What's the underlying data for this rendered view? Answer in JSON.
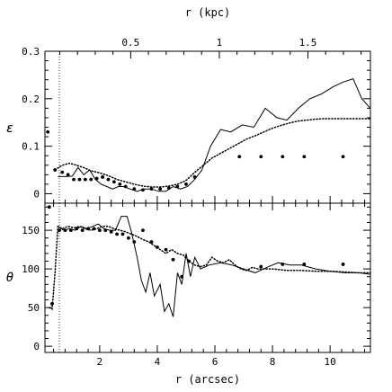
{
  "chart_data": {
    "type": "line",
    "top_axis": {
      "label": "r (kpc)",
      "ticks": [
        "0.5",
        "1",
        "1.5"
      ],
      "tick_values": [
        0.5,
        1,
        1.5
      ],
      "kpc_per_arcsec": 0.1625
    },
    "x_axis": {
      "label": "r (arcsec)",
      "ticks": [
        "2",
        "4",
        "6",
        "8",
        "10"
      ],
      "tick_values": [
        2,
        4,
        6,
        8,
        10
      ],
      "range": [
        0.1,
        11.4
      ]
    },
    "vertical_marker_x": 0.6,
    "panels": [
      {
        "name": "ellipticity",
        "ylabel": "ε",
        "yrange": [
          -0.02,
          0.3
        ],
        "ytick_labels": [
          "0",
          "0.1",
          "0.2",
          "0.3"
        ],
        "ytick_values": [
          0,
          0.1,
          0.2,
          0.3
        ],
        "series": [
          {
            "style": "solid",
            "x": [
              0.55,
              0.8,
              1.05,
              1.25,
              1.45,
              1.65,
              1.85,
              2.05,
              2.25,
              2.45,
              2.65,
              2.85,
              3.05,
              3.3,
              3.55,
              3.8,
              4.05,
              4.3,
              4.55,
              4.8,
              5.05,
              5.3,
              5.55,
              5.85,
              6.2,
              6.55,
              6.95,
              7.35,
              7.75,
              8.15,
              8.5,
              8.9,
              9.3,
              9.7,
              10.1,
              10.45,
              10.8,
              11.1,
              11.4
            ],
            "y": [
              0.036,
              0.036,
              0.037,
              0.055,
              0.04,
              0.05,
              0.03,
              0.02,
              0.015,
              0.01,
              0.015,
              0.015,
              0.01,
              0.005,
              0.01,
              0.01,
              0.005,
              0.005,
              0.015,
              0.01,
              0.015,
              0.03,
              0.05,
              0.1,
              0.135,
              0.13,
              0.145,
              0.14,
              0.18,
              0.16,
              0.155,
              0.18,
              0.2,
              0.21,
              0.225,
              0.235,
              0.242,
              0.2,
              0.18
            ]
          },
          {
            "style": "dotted",
            "x": [
              0.45,
              0.7,
              0.95,
              1.2,
              1.45,
              1.7,
              2.0,
              2.3,
              2.6,
              2.9,
              3.2,
              3.5,
              3.8,
              4.1,
              4.4,
              4.7,
              5.0,
              5.3,
              5.6,
              5.9,
              6.2,
              6.5,
              6.8,
              7.1,
              7.4,
              7.7,
              8.0,
              8.3,
              8.6,
              8.9,
              9.2,
              9.5,
              9.8,
              10.1,
              10.4,
              10.7,
              11.0,
              11.4
            ],
            "y": [
              0.05,
              0.06,
              0.064,
              0.06,
              0.055,
              0.048,
              0.044,
              0.038,
              0.03,
              0.025,
              0.02,
              0.016,
              0.014,
              0.014,
              0.016,
              0.02,
              0.028,
              0.045,
              0.06,
              0.075,
              0.085,
              0.095,
              0.105,
              0.115,
              0.122,
              0.13,
              0.138,
              0.144,
              0.149,
              0.153,
              0.155,
              0.157,
              0.158,
              0.158,
              0.158,
              0.158,
              0.158,
              0.158
            ]
          },
          {
            "style": "points",
            "x": [
              0.2,
              0.45,
              0.7,
              0.9,
              1.1,
              1.3,
              1.5,
              1.7,
              1.9,
              2.1,
              2.3,
              2.5,
              2.7,
              2.9,
              3.2,
              3.5,
              3.8,
              4.1,
              4.4,
              4.7,
              5.0,
              5.3,
              6.85,
              7.6,
              8.35,
              9.1,
              10.45
            ],
            "y": [
              0.13,
              0.05,
              0.045,
              0.04,
              0.03,
              0.03,
              0.03,
              0.03,
              0.032,
              0.035,
              0.03,
              0.025,
              0.02,
              0.015,
              0.01,
              0.008,
              0.01,
              0.01,
              0.012,
              0.015,
              0.02,
              0.035,
              0.078,
              0.078,
              0.078,
              0.078,
              0.078
            ]
          }
        ]
      },
      {
        "name": "position angle",
        "ylabel": "θ",
        "yrange": [
          -8,
          185
        ],
        "ytick_labels": [
          "0",
          "50",
          "100",
          "150"
        ],
        "ytick_values": [
          0,
          50,
          100,
          150
        ],
        "series": [
          {
            "style": "solid",
            "x": [
              0.55,
              0.75,
              0.95,
              1.15,
              1.35,
              1.55,
              1.75,
              1.95,
              2.15,
              2.35,
              2.55,
              2.75,
              2.95,
              3.1,
              3.3,
              3.45,
              3.6,
              3.75,
              3.9,
              4.1,
              4.25,
              4.4,
              4.55,
              4.7,
              4.85,
              5.0,
              5.15,
              5.3,
              5.5,
              5.8,
              6.2,
              6.6,
              7.0,
              7.4,
              7.8,
              8.2,
              8.6,
              9.0,
              9.5,
              10.0,
              10.5,
              11.0,
              11.4
            ],
            "y": [
              155,
              150,
              152,
              150,
              155,
              152,
              155,
              158,
              152,
              150,
              150,
              168,
              168,
              148,
              115,
              85,
              70,
              95,
              65,
              80,
              45,
              55,
              38,
              95,
              80,
              120,
              90,
              115,
              100,
              105,
              108,
              105,
              100,
              95,
              102,
              108,
              105,
              105,
              100,
              97,
              95,
              95,
              93
            ]
          },
          {
            "style": "dotted",
            "x": [
              0.25,
              0.35,
              0.45,
              0.55,
              0.7,
              0.9,
              1.1,
              1.3,
              1.5,
              1.7,
              1.9,
              2.1,
              2.3,
              2.5,
              2.7,
              2.9,
              3.1,
              3.3,
              3.5,
              3.7,
              3.9,
              4.1,
              4.3,
              4.5,
              4.7,
              4.9,
              5.1,
              5.3,
              5.5,
              5.7,
              5.9,
              6.1,
              6.3,
              6.5,
              6.7,
              6.9,
              7.1,
              7.3,
              7.5,
              7.7,
              8.0,
              8.5,
              9.0,
              9.5,
              10.0,
              10.5,
              11.0,
              11.4
            ],
            "y": [
              50,
              48,
              95,
              155,
              152,
              155,
              153,
              155,
              152,
              150,
              152,
              155,
              155,
              152,
              150,
              148,
              145,
              142,
              138,
              135,
              130,
              125,
              120,
              125,
              120,
              118,
              110,
              105,
              103,
              105,
              115,
              110,
              108,
              112,
              105,
              100,
              98,
              102,
              100,
              100,
              100,
              98,
              98,
              97,
              97,
              96,
              95,
              95
            ]
          },
          {
            "style": "points",
            "x": [
              0.25,
              0.35,
              0.6,
              0.8,
              1.0,
              1.2,
              1.4,
              1.6,
              1.8,
              2.0,
              2.2,
              2.4,
              2.6,
              2.8,
              3.0,
              3.2,
              3.5,
              3.8,
              4.0,
              4.3,
              4.55,
              4.85,
              5.1,
              7.6,
              8.35,
              9.1,
              10.45
            ],
            "y": [
              180,
              55,
              150,
              150,
              150,
              152,
              150,
              152,
              152,
              150,
              150,
              148,
              145,
              145,
              140,
              135,
              150,
              135,
              128,
              125,
              112,
              90,
              110,
              103,
              106,
              106,
              106
            ]
          }
        ]
      }
    ]
  }
}
